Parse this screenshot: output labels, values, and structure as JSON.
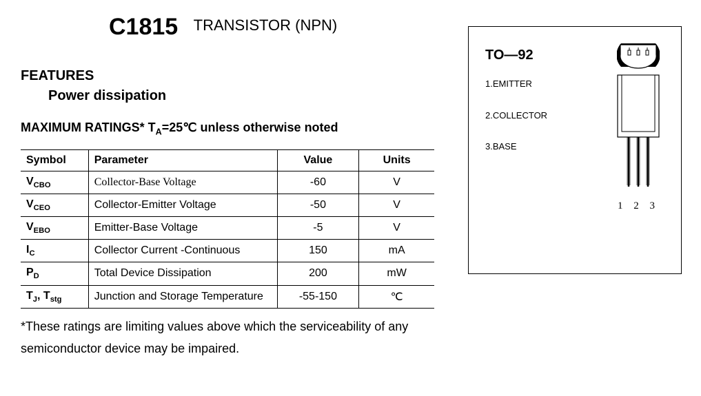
{
  "header": {
    "partNumber": "C1815",
    "partType": "TRANSISTOR (NPN)"
  },
  "features": {
    "heading": "FEATURES",
    "item1": "Power dissipation"
  },
  "maxRatings": {
    "headingPrefix": "MAXIMUM RATINGS* T",
    "headingSub": "A",
    "headingSuffix": "=25℃ unless otherwise noted",
    "columns": {
      "symbol": "Symbol",
      "parameter": "Parameter",
      "value": "Value",
      "units": "Units"
    },
    "rows": [
      {
        "symMain": "V",
        "symSub": "CBO",
        "param": "Collector-Base Voltage",
        "value": "-60",
        "units": "V",
        "paramSerif": true
      },
      {
        "symMain": "V",
        "symSub": "CEO",
        "param": "Collector-Emitter Voltage",
        "value": "-50",
        "units": "V",
        "paramSerif": false
      },
      {
        "symMain": "V",
        "symSub": "EBO",
        "param": "Emitter-Base Voltage",
        "value": "-5",
        "units": "V",
        "paramSerif": false
      },
      {
        "symMain": "I",
        "symSub": "C",
        "param": "Collector Current -Continuous",
        "value": "150",
        "units": "mA",
        "paramSerif": false
      },
      {
        "symMain": "P",
        "symSub": "D",
        "param": "Total Device Dissipation",
        "value": "200",
        "units": "mW",
        "paramSerif": false
      },
      {
        "symMain": "T",
        "symSub": "J",
        "sym2Main": ", T",
        "sym2Sub": "stg",
        "param": "Junction and Storage Temperature",
        "value": "-55-150",
        "units": "℃",
        "paramSerif": false
      }
    ]
  },
  "footnote": "*These ratings are limiting values above which the serviceability of any semiconductor device may be impaired.",
  "package": {
    "name": "TO—92",
    "pins": [
      {
        "n": "1",
        "label": "EMITTER"
      },
      {
        "n": "2",
        "label": "COLLECTOR"
      },
      {
        "n": "3",
        "label": "BASE"
      }
    ],
    "pinLegend": "1 2 3",
    "drawing": {
      "stroke": "#000000",
      "fill": "#ffffff",
      "strokeWidth": 1.2
    }
  }
}
